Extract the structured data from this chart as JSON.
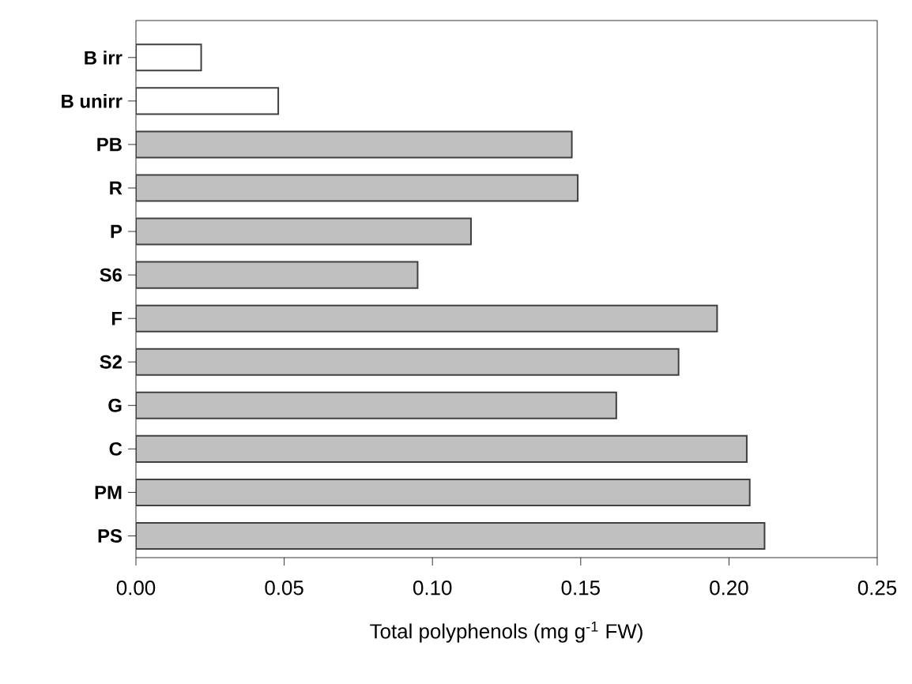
{
  "chart_data": {
    "type": "bar",
    "orientation": "horizontal",
    "categories": [
      "B irr",
      "B unirr",
      "PB",
      "R",
      "P",
      "S6",
      "F",
      "S2",
      "G",
      "C",
      "PM",
      "PS"
    ],
    "values": [
      0.022,
      0.048,
      0.147,
      0.149,
      0.113,
      0.095,
      0.196,
      0.183,
      0.162,
      0.206,
      0.207,
      0.212
    ],
    "colors": [
      "#ffffff",
      "#ffffff",
      "#c0c0c0",
      "#c0c0c0",
      "#c0c0c0",
      "#c0c0c0",
      "#c0c0c0",
      "#c0c0c0",
      "#c0c0c0",
      "#c0c0c0",
      "#c0c0c0",
      "#c0c0c0"
    ],
    "xlabel": "Total polyphenols (mg g$^{-1}$ FW)",
    "xlim": [
      0,
      0.25
    ],
    "xticks": [
      {
        "value": 0,
        "label": "0.00"
      },
      0.05,
      {
        "value": 0.1,
        "label": "0.10"
      },
      0.15,
      {
        "value": 0.2,
        "label": "0.20"
      },
      0.25
    ],
    "grid": false
  }
}
